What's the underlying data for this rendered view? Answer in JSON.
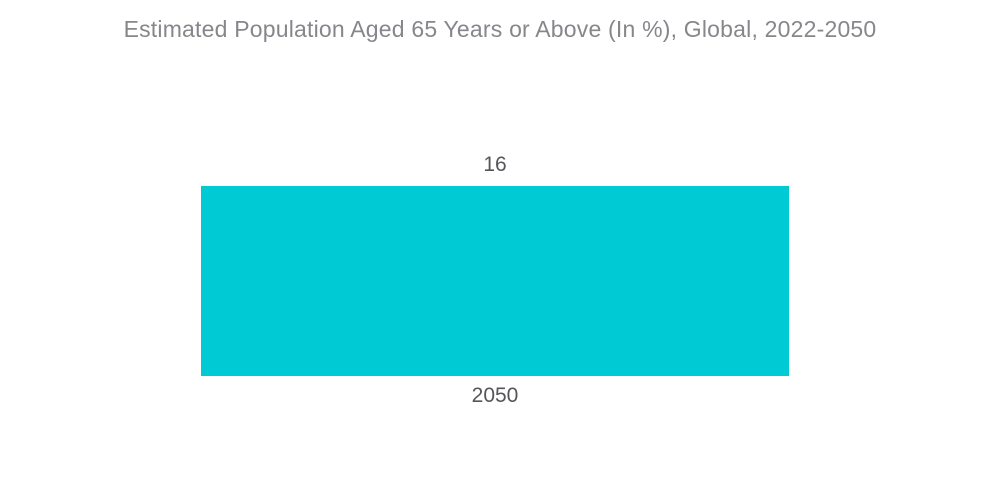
{
  "chart": {
    "title": "Estimated Population Aged 65 Years or Above (In %), Global, 2022-2050"
  },
  "chart_data": {
    "type": "bar",
    "categories": [
      "2050"
    ],
    "values": [
      16
    ],
    "series": [
      {
        "name": "Estimated Population Aged 65 Years or Above (In %)",
        "values": [
          16
        ]
      }
    ],
    "title": "Estimated Population Aged 65 Years or Above (In %), Global, 2022-2050",
    "xlabel": "",
    "ylabel": "",
    "orientation": "vertical",
    "value_labels": "above bars",
    "grid": false,
    "legend": false,
    "axes_visible": false
  },
  "colors": {
    "bar": "#00CAD3",
    "title_text": "#85878B",
    "label_text": "#55565B",
    "background": "#FFFFFF"
  }
}
